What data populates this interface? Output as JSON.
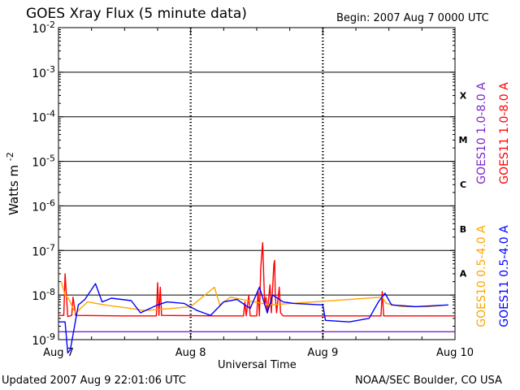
{
  "header": {
    "title": "GOES Xray Flux (5 minute data)",
    "begin": "Begin:  2007 Aug 7 0000 UTC"
  },
  "footer": {
    "updated": "Updated 2007 Aug  9 22:01:06 UTC",
    "credit": "NOAA/SEC Boulder, CO USA"
  },
  "chart_data": {
    "type": "line",
    "title": "GOES Xray Flux (5 minute data)",
    "xlabel": "Universal Time",
    "ylabel": "Watts m-2",
    "ylabel_base": "Watts m",
    "ylabel_exp": "-2",
    "y_scale": "log",
    "ylim": [
      1e-09,
      0.01
    ],
    "xlim": [
      "Aug 7",
      "Aug 10"
    ],
    "x_unit": "UTC",
    "x_ticks": [
      "Aug 7",
      "Aug 8",
      "Aug 9",
      "Aug 10"
    ],
    "y_tick_base": "10",
    "y_ticks": [
      {
        "exp": "-9",
        "value": 1e-09
      },
      {
        "exp": "-8",
        "value": 1e-08
      },
      {
        "exp": "-7",
        "value": 1e-07
      },
      {
        "exp": "-6",
        "value": 1e-06
      },
      {
        "exp": "-5",
        "value": 1e-05
      },
      {
        "exp": "-4",
        "value": 0.0001
      },
      {
        "exp": "-3",
        "value": 0.001
      },
      {
        "exp": "-2",
        "value": 0.01
      }
    ],
    "flare_classes": [
      {
        "label": "A",
        "lower": 1e-08
      },
      {
        "label": "B",
        "lower": 1e-07
      },
      {
        "label": "C",
        "lower": 1e-06
      },
      {
        "label": "M",
        "lower": 1e-05
      },
      {
        "label": "X",
        "lower": 0.0001
      }
    ],
    "grid": true,
    "legend_placement": "right, vertical",
    "series": [
      {
        "name": "GOES10 1.0-8.0 A",
        "color": "#7d26cd",
        "points": [
          [
            0,
            1.5e-09
          ],
          [
            3.0,
            1.5e-09
          ]
        ]
      },
      {
        "name": "GOES11 1.0-8.0 A",
        "color": "#ff0000",
        "points": [
          [
            0,
            3.5e-09
          ],
          [
            0.04,
            3.5e-09
          ],
          [
            0.05,
            3e-08
          ],
          [
            0.07,
            3.3e-09
          ],
          [
            0.1,
            3.5e-09
          ],
          [
            0.11,
            9e-09
          ],
          [
            0.13,
            3.5e-09
          ],
          [
            0.5,
            3.4e-09
          ],
          [
            0.74,
            3.4e-09
          ],
          [
            0.75,
            1.9e-08
          ],
          [
            0.76,
            3.5e-09
          ],
          [
            0.77,
            1.5e-08
          ],
          [
            0.78,
            3.5e-09
          ],
          [
            1.2,
            3.4e-09
          ],
          [
            1.4,
            3.4e-09
          ],
          [
            1.41,
            7e-09
          ],
          [
            1.42,
            3.4e-09
          ],
          [
            1.44,
            1e-08
          ],
          [
            1.45,
            3.4e-09
          ],
          [
            1.5,
            3.4e-09
          ],
          [
            1.51,
            1.3e-08
          ],
          [
            1.52,
            3.4e-09
          ],
          [
            1.53,
            4e-08
          ],
          [
            1.54,
            1e-07
          ],
          [
            1.545,
            1.5e-07
          ],
          [
            1.55,
            5e-08
          ],
          [
            1.56,
            6e-09
          ],
          [
            1.57,
            9e-09
          ],
          [
            1.58,
            4e-09
          ],
          [
            1.6,
            1.7e-08
          ],
          [
            1.61,
            4e-09
          ],
          [
            1.63,
            5e-08
          ],
          [
            1.635,
            6e-08
          ],
          [
            1.64,
            1e-08
          ],
          [
            1.65,
            4e-09
          ],
          [
            1.67,
            1.5e-08
          ],
          [
            1.68,
            4e-09
          ],
          [
            1.7,
            3.4e-09
          ],
          [
            2.0,
            3.4e-09
          ],
          [
            2.44,
            3.4e-09
          ],
          [
            2.45,
            1.2e-08
          ],
          [
            2.46,
            3.4e-09
          ],
          [
            3.0,
            3.4e-09
          ]
        ]
      },
      {
        "name": "GOES10 0.5-4.0 A",
        "color": "#ffa500",
        "points": [
          [
            0.02,
            2e-08
          ],
          [
            0.05,
            1e-08
          ],
          [
            0.08,
            8e-09
          ],
          [
            0.11,
            5e-09
          ],
          [
            0.13,
            4e-09
          ],
          [
            0.22,
            7e-09
          ],
          [
            0.35,
            6e-09
          ],
          [
            0.55,
            5e-09
          ],
          [
            0.65,
            4.5e-09
          ],
          [
            0.85,
            5e-09
          ],
          [
            1.0,
            5.5e-09
          ],
          [
            1.18,
            1.5e-08
          ],
          [
            1.22,
            6e-09
          ],
          [
            1.3,
            9e-09
          ],
          [
            1.6,
            6e-09
          ],
          [
            2.45,
            9e-09
          ],
          [
            2.48,
            6.5e-09
          ],
          [
            2.6,
            5.5e-09
          ],
          [
            2.8,
            5.5e-09
          ],
          [
            2.9,
            5.8e-09
          ]
        ]
      },
      {
        "name": "GOES11 0.5-4.0 A",
        "color": "#0000ff",
        "points": [
          [
            0,
            2.5e-09
          ],
          [
            0.05,
            2.5e-09
          ],
          [
            0.07,
            5e-10
          ],
          [
            0.09,
            6e-10
          ],
          [
            0.15,
            6e-09
          ],
          [
            0.2,
            8e-09
          ],
          [
            0.28,
            1.8e-08
          ],
          [
            0.33,
            7e-09
          ],
          [
            0.4,
            8.5e-09
          ],
          [
            0.55,
            7.5e-09
          ],
          [
            0.62,
            4e-09
          ],
          [
            0.75,
            6e-09
          ],
          [
            0.82,
            7e-09
          ],
          [
            0.95,
            6.5e-09
          ],
          [
            1.05,
            4.5e-09
          ],
          [
            1.15,
            3.5e-09
          ],
          [
            1.25,
            7e-09
          ],
          [
            1.35,
            8e-09
          ],
          [
            1.45,
            5e-09
          ],
          [
            1.52,
            1.5e-08
          ],
          [
            1.58,
            4e-09
          ],
          [
            1.62,
            1e-08
          ],
          [
            1.7,
            7e-09
          ],
          [
            1.78,
            6.5e-09
          ],
          [
            2.0,
            6e-09
          ],
          [
            2.02,
            2.7e-09
          ],
          [
            2.2,
            2.5e-09
          ],
          [
            2.35,
            3e-09
          ],
          [
            2.42,
            7e-09
          ],
          [
            2.47,
            1.1e-08
          ],
          [
            2.52,
            6e-09
          ],
          [
            2.7,
            5.5e-09
          ],
          [
            2.95,
            6e-09
          ]
        ]
      }
    ]
  }
}
